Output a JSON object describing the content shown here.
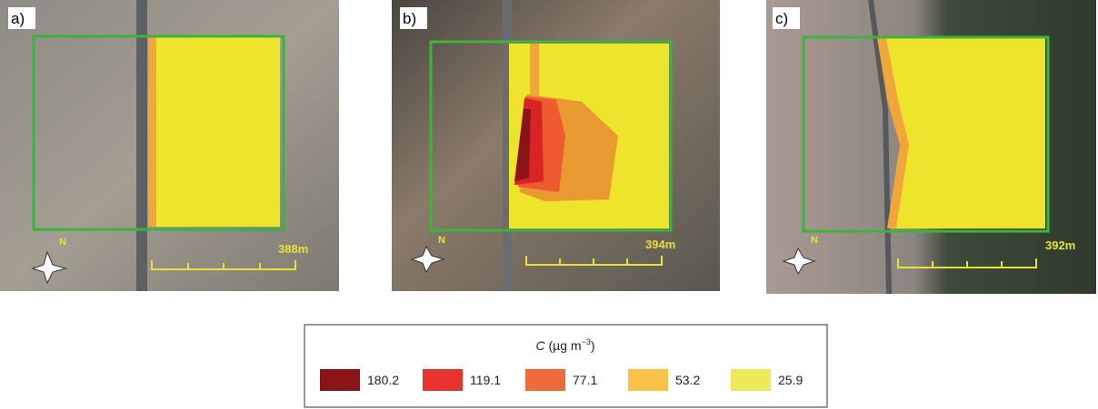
{
  "panels": [
    {
      "label": "a)",
      "north": "N",
      "scale": "388m"
    },
    {
      "label": "b)",
      "north": "N",
      "scale": "394m"
    },
    {
      "label": "c)",
      "north": "N",
      "scale": "392m"
    }
  ],
  "legend": {
    "title": {
      "symbol": "C",
      "unit_open": "(µg m",
      "exponent": "−3",
      "unit_close": ")"
    },
    "entries": [
      {
        "value": 180.2,
        "color": "#8b1418"
      },
      {
        "value": 119.1,
        "color": "#e8322e"
      },
      {
        "value": 77.1,
        "color": "#ef6c3a"
      },
      {
        "value": 53.2,
        "color": "#fbc24a"
      },
      {
        "value": 25.9,
        "color": "#eee85a"
      }
    ]
  }
}
